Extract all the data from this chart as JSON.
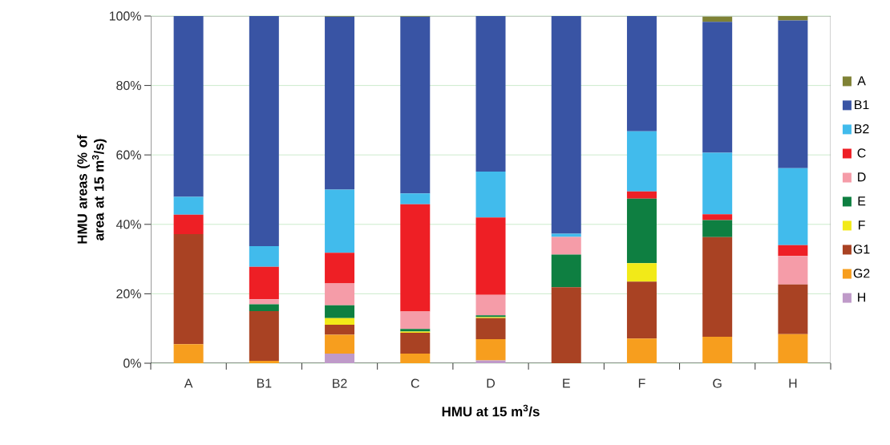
{
  "chart_data": {
    "type": "bar",
    "stacked": true,
    "xlabel": "HMU at 15 m$^{3}$/s",
    "ylabel": "HMU areas (% of area at 15 m$^{3}$/s)",
    "categories": [
      "A",
      "B1",
      "B2",
      "C",
      "D",
      "E",
      "F",
      "G",
      "H"
    ],
    "series": [
      {
        "name": "H",
        "color": "#bf9ac9",
        "values": [
          0,
          0,
          2.8,
          0,
          0.8,
          0,
          0,
          0,
          0
        ]
      },
      {
        "name": "G2",
        "color": "#f79e1e",
        "values": [
          5.5,
          0.7,
          5.4,
          2.8,
          6.1,
          0,
          7.1,
          7.6,
          8.4
        ]
      },
      {
        "name": "G1",
        "color": "#a94223",
        "values": [
          31.7,
          14.3,
          2.9,
          6.0,
          6.1,
          21.9,
          16.4,
          28.7,
          14.3
        ]
      },
      {
        "name": "F",
        "color": "#f2ea18",
        "values": [
          0,
          0,
          1.9,
          0.3,
          0.3,
          0,
          5.3,
          0,
          0
        ]
      },
      {
        "name": "E",
        "color": "#0e7f41",
        "values": [
          0,
          2.0,
          3.7,
          0.8,
          0.5,
          9.4,
          18.6,
          4.9,
          0
        ]
      },
      {
        "name": "D",
        "color": "#f59ca8",
        "values": [
          0,
          1.4,
          6.3,
          5.0,
          5.9,
          5.1,
          0,
          null,
          8.2
        ]
      },
      {
        "name": "C",
        "color": "#ee1f25",
        "values": [
          5.6,
          9.4,
          8.8,
          30.9,
          22.3,
          0,
          2.1,
          1.7,
          3.1
        ]
      },
      {
        "name": "B2",
        "color": "#41bbec",
        "values": [
          5.1,
          5.9,
          18.2,
          3.1,
          13.2,
          0.9,
          17.3,
          17.7,
          22.2
        ]
      },
      {
        "name": "B1",
        "color": "#3954a4",
        "values": [
          52.1,
          66.3,
          49.8,
          50.9,
          44.8,
          62.7,
          33.2,
          37.7,
          42.5
        ]
      },
      {
        "name": "A",
        "color": "#7f8235",
        "values": [
          0,
          0,
          0.2,
          0.2,
          0,
          0,
          0,
          1.5,
          1.3
        ]
      }
    ],
    "ylim": [
      0,
      100
    ],
    "yticks": [
      {
        "value": 0,
        "label": "0%"
      },
      {
        "value": 20,
        "label": "20%"
      },
      {
        "value": 40,
        "label": "40%"
      },
      {
        "value": 60,
        "label": "60%"
      },
      {
        "value": 80,
        "label": "80%"
      },
      {
        "value": 100,
        "label": "100%"
      }
    ],
    "grid": "y",
    "legend": "right"
  }
}
